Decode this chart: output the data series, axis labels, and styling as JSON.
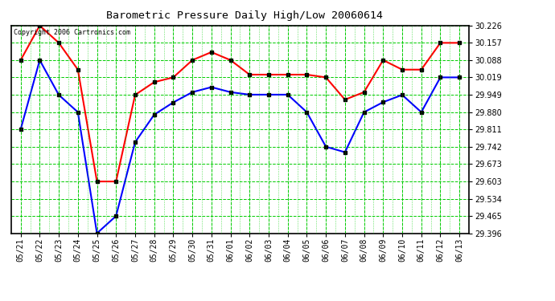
{
  "title": "Barometric Pressure Daily High/Low 20060614",
  "copyright": "Copyright 2006 Cartronics.com",
  "dates": [
    "05/21",
    "05/22",
    "05/23",
    "05/24",
    "05/25",
    "05/26",
    "05/27",
    "05/28",
    "05/29",
    "05/30",
    "05/31",
    "06/01",
    "06/02",
    "06/03",
    "06/04",
    "06/05",
    "06/06",
    "06/07",
    "06/08",
    "06/09",
    "06/10",
    "06/11",
    "06/12",
    "06/13"
  ],
  "high": [
    30.088,
    30.226,
    30.157,
    30.05,
    29.603,
    29.603,
    29.949,
    30.0,
    30.019,
    30.088,
    30.12,
    30.088,
    30.03,
    30.03,
    30.03,
    30.03,
    30.019,
    29.93,
    29.96,
    30.088,
    30.05,
    30.05,
    30.157,
    30.157
  ],
  "low": [
    29.811,
    30.088,
    29.949,
    29.88,
    29.396,
    29.465,
    29.76,
    29.87,
    29.919,
    29.96,
    29.98,
    29.96,
    29.95,
    29.95,
    29.95,
    29.88,
    29.742,
    29.72,
    29.88,
    29.92,
    29.949,
    29.88,
    30.019,
    30.019
  ],
  "ylim_min": 29.396,
  "ylim_max": 30.226,
  "yticks": [
    29.396,
    29.465,
    29.534,
    29.603,
    29.673,
    29.742,
    29.811,
    29.88,
    29.949,
    30.019,
    30.088,
    30.157,
    30.226
  ],
  "high_color": "#ff0000",
  "low_color": "#0000ff",
  "grid_color": "#00cc00",
  "bg_color": "#ffffff",
  "title_color": "#000000",
  "copyright_color": "#000000",
  "marker_color": "#000000",
  "marker_size": 3,
  "line_width": 1.5,
  "figure_width": 6.9,
  "figure_height": 3.75,
  "dpi": 100
}
